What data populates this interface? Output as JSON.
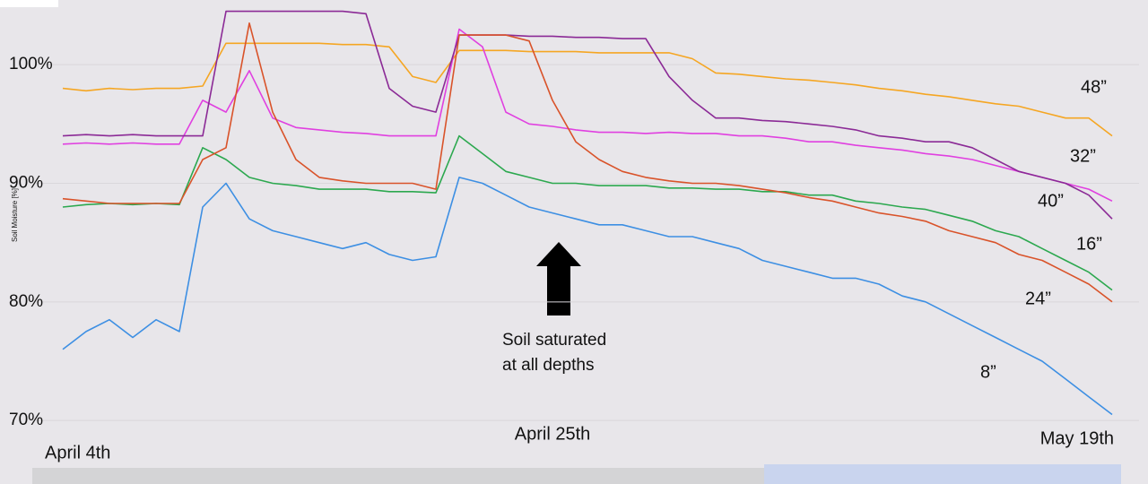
{
  "chart_data": {
    "type": "line",
    "y_label": "Soil Moisture [%]",
    "annotation": [
      "Soil saturated",
      "at all depths"
    ],
    "categories": [
      "April 4th",
      null,
      null,
      null,
      null,
      null,
      null,
      null,
      null,
      null,
      null,
      null,
      null,
      null,
      null,
      null,
      null,
      null,
      null,
      null,
      null,
      "April 25th",
      null,
      null,
      null,
      null,
      null,
      null,
      null,
      null,
      null,
      null,
      null,
      null,
      null,
      null,
      null,
      null,
      null,
      null,
      null,
      null,
      null,
      null,
      null,
      "May 19th"
    ],
    "ylim": [
      68.5,
      105
    ],
    "yticks": [
      {
        "value": 70,
        "label": "70%"
      },
      {
        "value": 80,
        "label": "80%"
      },
      {
        "value": 90,
        "label": "90%"
      },
      {
        "value": 100,
        "label": "100%"
      }
    ],
    "grid": true,
    "series": [
      {
        "name": "48”",
        "color": "#f5a623",
        "values": [
          98,
          97.8,
          98,
          97.9,
          98,
          98,
          98.2,
          101.8,
          101.8,
          101.8,
          101.8,
          101.8,
          101.7,
          101.7,
          101.5,
          99,
          98.5,
          101.2,
          101.2,
          101.2,
          101.1,
          101.1,
          101.1,
          101,
          101,
          101,
          101,
          100.5,
          99.3,
          99.2,
          99,
          98.8,
          98.7,
          98.5,
          98.3,
          98,
          97.8,
          97.5,
          97.3,
          97,
          96.7,
          96.5,
          96,
          95.5,
          95.5,
          94
        ]
      },
      {
        "name": "32”",
        "color": "#e040e0",
        "values": [
          93.3,
          93.4,
          93.3,
          93.4,
          93.3,
          93.3,
          97,
          96,
          99.5,
          95.5,
          94.7,
          94.5,
          94.3,
          94.2,
          94,
          94,
          94,
          103,
          101.5,
          96,
          95,
          94.8,
          94.5,
          94.3,
          94.3,
          94.2,
          94.3,
          94.2,
          94.2,
          94,
          94,
          93.8,
          93.5,
          93.5,
          93.2,
          93,
          92.8,
          92.5,
          92.3,
          92,
          91.5,
          91,
          90.5,
          90,
          89.5,
          88.5
        ]
      },
      {
        "name": "40”",
        "color": "#8b2a96",
        "values": [
          94,
          94.1,
          94,
          94.1,
          94,
          94,
          94,
          104.5,
          104.5,
          104.5,
          104.5,
          104.5,
          104.5,
          104.3,
          98,
          96.5,
          96,
          102.5,
          102.5,
          102.5,
          102.4,
          102.4,
          102.3,
          102.3,
          102.2,
          102.2,
          99,
          97,
          95.5,
          95.5,
          95.3,
          95.2,
          95,
          94.8,
          94.5,
          94,
          93.8,
          93.5,
          93.5,
          93,
          92,
          91,
          90.5,
          90,
          89,
          87
        ]
      },
      {
        "name": "16”",
        "color": "#2ca84f",
        "values": [
          88,
          88.2,
          88.3,
          88.2,
          88.3,
          88.2,
          93,
          92,
          90.5,
          90,
          89.8,
          89.5,
          89.5,
          89.5,
          89.3,
          89.3,
          89.2,
          94,
          92.5,
          91,
          90.5,
          90,
          90,
          89.8,
          89.8,
          89.8,
          89.6,
          89.6,
          89.5,
          89.5,
          89.3,
          89.3,
          89,
          89,
          88.5,
          88.3,
          88,
          87.8,
          87.3,
          86.8,
          86,
          85.5,
          84.5,
          83.5,
          82.5,
          81
        ]
      },
      {
        "name": "24”",
        "color": "#d9532a",
        "values": [
          88.7,
          88.5,
          88.3,
          88.3,
          88.3,
          88.3,
          92,
          93,
          103.5,
          96,
          92,
          90.5,
          90.2,
          90,
          90,
          90,
          89.5,
          102.5,
          102.5,
          102.5,
          102,
          97,
          93.5,
          92,
          91,
          90.5,
          90.2,
          90,
          90,
          89.8,
          89.5,
          89.2,
          88.8,
          88.5,
          88,
          87.5,
          87.2,
          86.8,
          86,
          85.5,
          85,
          84,
          83.5,
          82.5,
          81.5,
          80
        ]
      },
      {
        "name": "8”",
        "color": "#3d8fe3",
        "values": [
          76,
          77.5,
          78.5,
          77,
          78.5,
          77.5,
          88,
          90,
          87,
          86,
          85.5,
          85,
          84.5,
          85,
          84,
          83.5,
          83.8,
          90.5,
          90,
          89,
          88,
          87.5,
          87,
          86.5,
          86.5,
          86,
          85.5,
          85.5,
          85,
          84.5,
          83.5,
          83,
          82.5,
          82,
          82,
          81.5,
          80.5,
          80,
          79,
          78,
          77,
          76,
          75,
          73.5,
          72,
          70.5
        ]
      }
    ]
  }
}
